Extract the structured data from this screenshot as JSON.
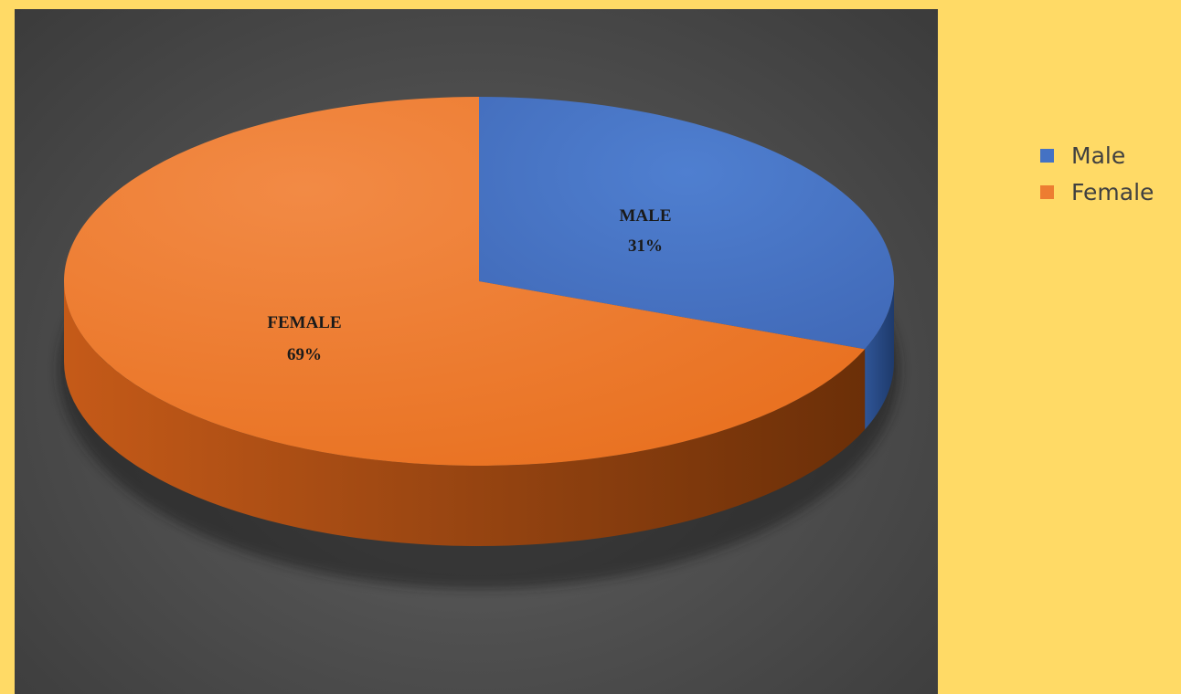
{
  "chart_data": {
    "type": "pie",
    "categories": [
      "Male",
      "Female"
    ],
    "values": [
      31,
      69
    ],
    "slice_labels": [
      {
        "name": "MALE",
        "value": "31%"
      },
      {
        "name": "FEMALE",
        "value": "69%"
      }
    ],
    "colors": [
      "#4472C4",
      "#ED7D31"
    ],
    "style": "3d",
    "legend_position": "right",
    "legend": [
      {
        "label": "Male",
        "color": "#4472C4"
      },
      {
        "label": "Female",
        "color": "#ED7D31"
      }
    ]
  },
  "colors": {
    "background": "#FFDA66",
    "plot_area": "#505050"
  }
}
